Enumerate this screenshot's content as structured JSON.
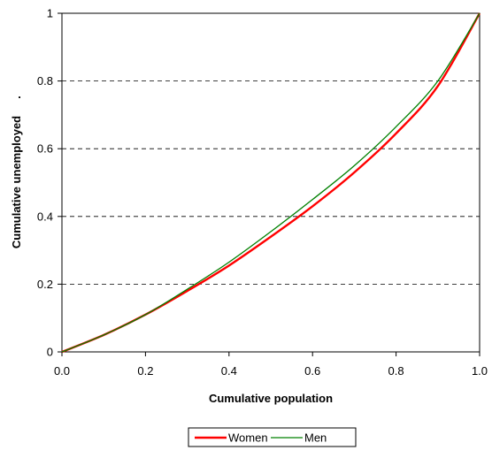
{
  "chart_data": {
    "type": "line",
    "title": "",
    "xlabel": "Cumulative population",
    "ylabel": "Cumulative unemployed",
    "ylabel_suffix": ".",
    "xlim": [
      0,
      1
    ],
    "ylim": [
      0,
      1
    ],
    "x_ticks": [
      "0.0",
      "0.2",
      "0.4",
      "0.6",
      "0.8",
      "1.0"
    ],
    "y_ticks": [
      "0",
      "0.2",
      "0.4",
      "0.6",
      "0.8",
      "1"
    ],
    "grid": "horizontal dashed",
    "legend_position": "bottom",
    "x": [
      0,
      0.1,
      0.2,
      0.3,
      0.4,
      0.5,
      0.6,
      0.7,
      0.8,
      0.9,
      1.0
    ],
    "series": [
      {
        "name": "Women",
        "color": "#ff0000",
        "values": [
          0,
          0.05,
          0.11,
          0.18,
          0.255,
          0.34,
          0.43,
          0.53,
          0.645,
          0.785,
          1.0
        ]
      },
      {
        "name": "Men",
        "color": "#008000",
        "values": [
          0,
          0.05,
          0.11,
          0.185,
          0.265,
          0.355,
          0.45,
          0.55,
          0.665,
          0.8,
          1.0
        ]
      }
    ]
  }
}
